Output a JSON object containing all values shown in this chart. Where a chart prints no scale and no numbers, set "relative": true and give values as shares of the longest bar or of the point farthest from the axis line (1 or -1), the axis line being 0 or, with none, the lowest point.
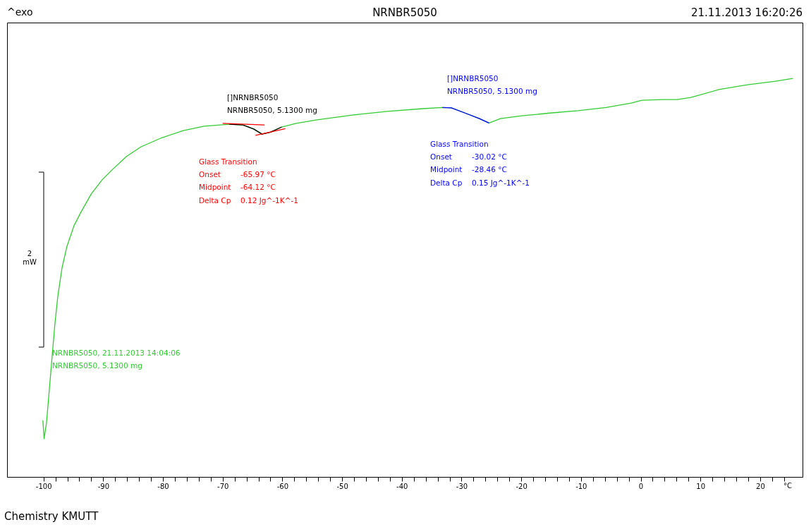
{
  "chart_data": {
    "type": "line",
    "title": "NRNBR5050",
    "xlabel": "°C",
    "relative": true,
    "xlim": [
      -106.1,
      27.1
    ],
    "xticks": [
      -100,
      {
        "value": -98,
        "label": null
      },
      {
        "value": -96,
        "label": null
      },
      {
        "value": -94,
        "label": null
      },
      {
        "value": -92,
        "label": null
      },
      -90,
      {
        "value": -88,
        "label": null
      },
      {
        "value": -86,
        "label": null
      },
      {
        "value": -84,
        "label": null
      },
      {
        "value": -82,
        "label": null
      },
      -80,
      {
        "value": -78,
        "label": null
      },
      {
        "value": -76,
        "label": null
      },
      {
        "value": -74,
        "label": null
      },
      {
        "value": -72,
        "label": null
      },
      -70,
      {
        "value": -68,
        "label": null
      },
      {
        "value": -66,
        "label": null
      },
      {
        "value": -64,
        "label": null
      },
      {
        "value": -62,
        "label": null
      },
      -60,
      {
        "value": -58,
        "label": null
      },
      {
        "value": -56,
        "label": null
      },
      {
        "value": -54,
        "label": null
      },
      {
        "value": -52,
        "label": null
      },
      -50,
      {
        "value": -48,
        "label": null
      },
      {
        "value": -46,
        "label": null
      },
      {
        "value": -44,
        "label": null
      },
      {
        "value": -42,
        "label": null
      },
      -40,
      {
        "value": -38,
        "label": null
      },
      {
        "value": -36,
        "label": null
      },
      {
        "value": -34,
        "label": null
      },
      {
        "value": -32,
        "label": null
      },
      -30,
      {
        "value": -28,
        "label": null
      },
      {
        "value": -26,
        "label": null
      },
      {
        "value": -24,
        "label": null
      },
      {
        "value": -22,
        "label": null
      },
      -20,
      {
        "value": -18,
        "label": null
      },
      {
        "value": -16,
        "label": null
      },
      {
        "value": -14,
        "label": null
      },
      {
        "value": -12,
        "label": null
      },
      -10,
      {
        "value": -8,
        "label": null
      },
      {
        "value": -6,
        "label": null
      },
      {
        "value": -4,
        "label": null
      },
      {
        "value": -2,
        "label": null
      },
      0,
      {
        "value": 2,
        "label": null
      },
      {
        "value": 4,
        "label": null
      },
      {
        "value": 6,
        "label": null
      },
      {
        "value": 8,
        "label": null
      },
      10,
      {
        "value": 12,
        "label": null
      },
      {
        "value": 14,
        "label": null
      },
      {
        "value": 16,
        "label": null
      },
      {
        "value": 18,
        "label": null
      },
      20,
      {
        "value": 22,
        "label": null
      },
      {
        "value": 24,
        "label": null
      }
    ],
    "grid": false,
    "marker": "none",
    "line_style": "solid",
    "series": [
      {
        "color": "#33cc33",
        "x": [
          -100.1,
          -99.9,
          -99.5,
          -99.1,
          -98.6,
          -98.1,
          -97.6,
          -96.9,
          -96.1,
          -94.9,
          -93.7,
          -92.0,
          -90.2,
          -88.4,
          -86.1,
          -83.7,
          -80.2,
          -76.6,
          -73.1,
          -68.9,
          -66.6,
          -64.8,
          -63.4,
          -62.0,
          -60.1,
          -57.7,
          -54.2,
          -48.3,
          -42.4,
          -36.5,
          -33.2,
          -31.7,
          -29.4,
          -27.0,
          -25.4,
          -23.5,
          -19.9,
          -15.2,
          -10.5,
          -5.8,
          -1.6,
          0.2,
          3.7,
          6.1,
          8.4,
          13.1,
          17.9,
          22.6,
          25.5
        ],
        "values": [
          0.142,
          0.096,
          0.135,
          0.205,
          0.294,
          0.382,
          0.453,
          0.524,
          0.577,
          0.63,
          0.665,
          0.71,
          0.745,
          0.772,
          0.804,
          0.828,
          0.851,
          0.869,
          0.88,
          0.885,
          0.883,
          0.873,
          0.86,
          0.865,
          0.878,
          0.887,
          0.896,
          0.908,
          0.917,
          0.924,
          0.927,
          0.926,
          0.913,
          0.899,
          0.888,
          0.899,
          0.906,
          0.913,
          0.919,
          0.927,
          0.938,
          0.945,
          0.947,
          0.947,
          0.952,
          0.972,
          0.984,
          0.993,
          1.0
        ]
      },
      {
        "color": "#000000",
        "x": [
          -68.9,
          -66.6,
          -64.8,
          -63.4,
          -62.0,
          -60.1
        ],
        "values": [
          0.885,
          0.883,
          0.873,
          0.86,
          0.865,
          0.878
        ]
      },
      {
        "color": "#0000ff",
        "x": [
          -33.2,
          -31.7,
          -29.4,
          -27.0,
          -25.4
        ],
        "values": [
          0.927,
          0.926,
          0.913,
          0.899,
          0.888
        ]
      },
      {
        "color": "#ff0000",
        "x": [
          -70.0,
          -63.0,
          null,
          -64.5,
          -59.5
        ],
        "values": [
          0.887,
          0.883,
          null,
          0.857,
          0.874
        ]
      }
    ],
    "annotations": [
      "^exo",
      "21.11.2013 16:20:26",
      "2 mW",
      "Chemistry KMUTT",
      "[]NRNBR5050",
      "NRNBR5050, 5.1300 mg",
      "Glass Transition",
      "Onset",
      "-65.97 °C",
      "Midpoint",
      "-64.12 °C",
      "Delta Cp",
      "0.12 Jg^-1K^-1",
      "[]NRNBR5050",
      "NRNBR5050, 5.1300 mg",
      "Glass Transition",
      "Onset",
      "-30.02 °C",
      "Midpoint",
      "-28.46 °C",
      "Delta Cp",
      "0.15 Jg^-1K^-1",
      "NRNBR5050, 21.11.2013 14:04:06",
      "NRNBR5050, 5.1300 mg"
    ]
  }
}
